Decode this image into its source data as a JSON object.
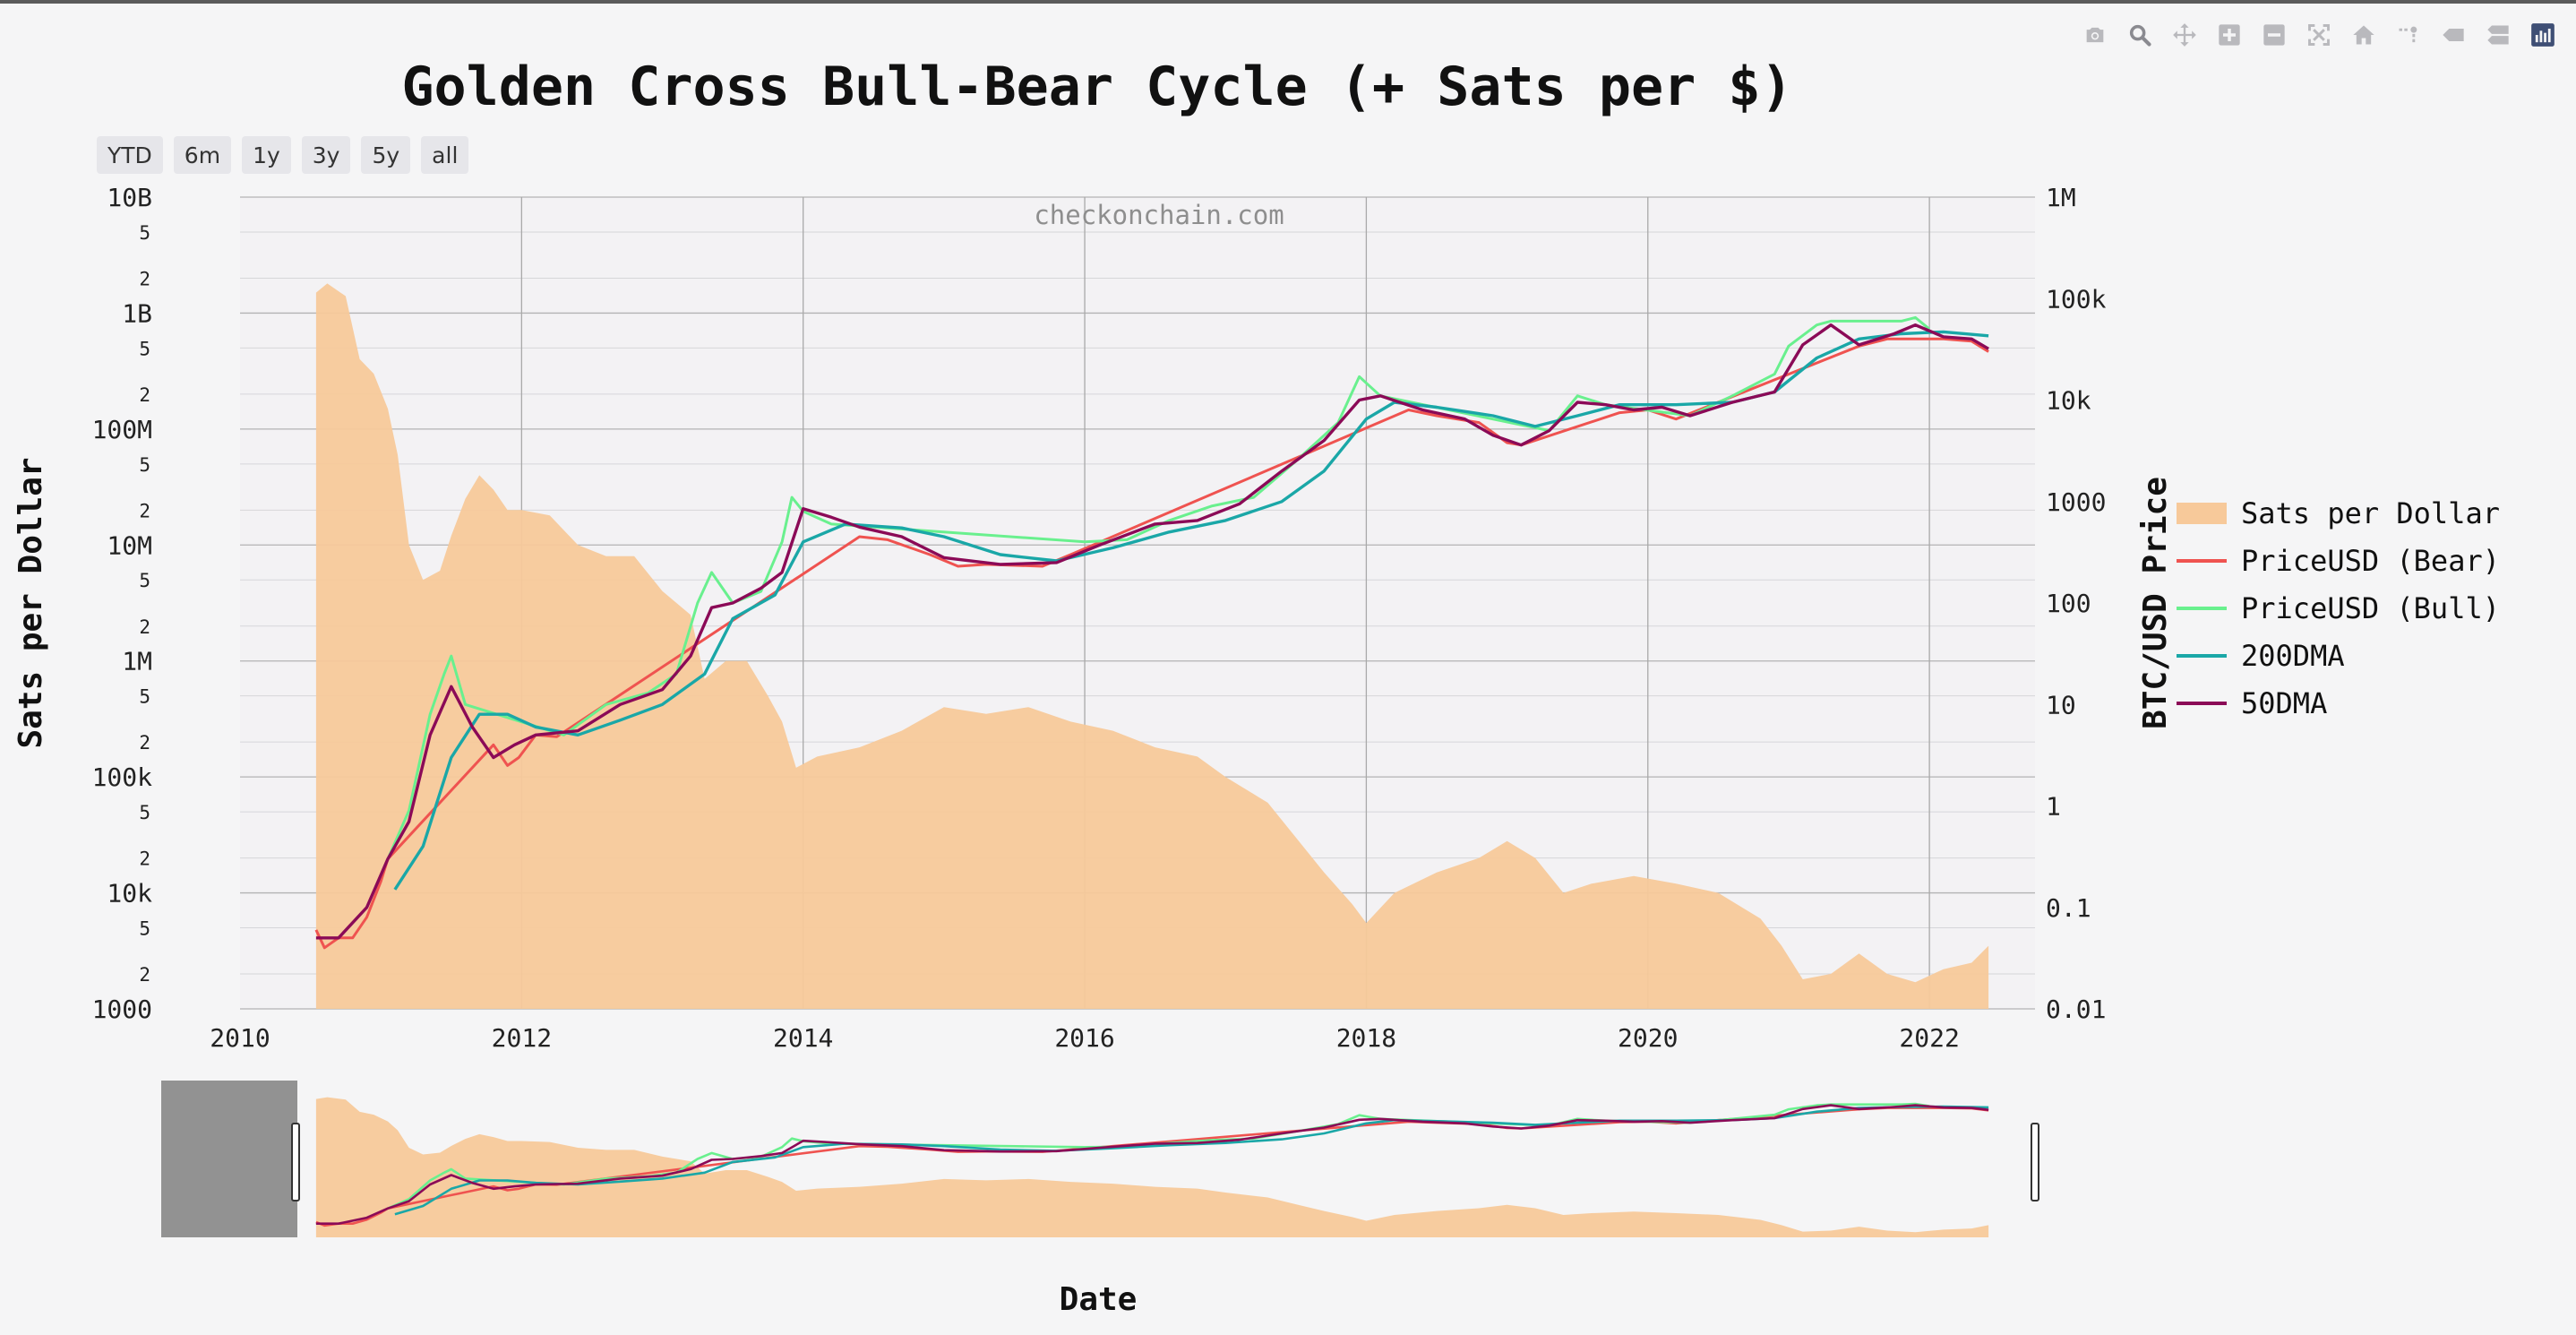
{
  "title": "Golden Cross Bull-Bear Cycle (+ Sats per $)",
  "watermark": "checkonchain.com",
  "range_buttons": [
    "YTD",
    "6m",
    "1y",
    "3y",
    "5y",
    "all"
  ],
  "modebar_icons": [
    "camera-icon",
    "zoom-icon",
    "pan-icon",
    "zoom-in-icon",
    "zoom-out-icon",
    "autoscale-icon",
    "reset-axes-icon",
    "spike-lines-icon",
    "hover-closest-icon",
    "hover-compare-icon",
    "plotly-logo-icon"
  ],
  "colors": {
    "sats": "#f7c99a",
    "bear": "#ef5350",
    "bull": "#69f08e",
    "dma200": "#1aa7a7",
    "dma50": "#8b0a57"
  },
  "chart_data": {
    "type": "line",
    "x_axis": {
      "title": "Date",
      "range": [
        2010,
        2022.75
      ],
      "ticks": [
        "2010",
        "2012",
        "2014",
        "2016",
        "2018",
        "2020",
        "2022"
      ]
    },
    "y_left": {
      "title": "Sats per Dollar",
      "scale": "log",
      "range": [
        1000,
        10000000000
      ],
      "ticks": [
        "1000",
        "10k",
        "100k",
        "1M",
        "10M",
        "100M",
        "1B",
        "10B"
      ],
      "minor_ticks": [
        "2",
        "5"
      ]
    },
    "y_right": {
      "title": "BTC/USD Price",
      "scale": "log",
      "range": [
        0.01,
        1000000
      ],
      "ticks": [
        "0.01",
        "0.1",
        "1",
        "10",
        "100",
        "1000",
        "10k",
        "100k",
        "1M"
      ]
    },
    "legend_position": "right",
    "legend": [
      "Sats per Dollar",
      "PriceUSD (Bear)",
      "PriceUSD (Bull)",
      "200DMA",
      "50DMA"
    ],
    "rangeslider": true,
    "series": [
      {
        "name": "Sats per Dollar",
        "axis": "left",
        "style": "area",
        "x": [
          2010.54,
          2010.62,
          2010.75,
          2010.85,
          2010.95,
          2011.05,
          2011.12,
          2011.2,
          2011.3,
          2011.42,
          2011.5,
          2011.6,
          2011.7,
          2011.8,
          2011.9,
          2012.0,
          2012.2,
          2012.4,
          2012.6,
          2012.8,
          2013.0,
          2013.2,
          2013.3,
          2013.45,
          2013.6,
          2013.75,
          2013.85,
          2013.95,
          2014.1,
          2014.4,
          2014.7,
          2015.0,
          2015.3,
          2015.6,
          2015.9,
          2016.2,
          2016.5,
          2016.8,
          2017.0,
          2017.3,
          2017.5,
          2017.7,
          2017.9,
          2018.0,
          2018.2,
          2018.5,
          2018.8,
          2019.0,
          2019.2,
          2019.4,
          2019.6,
          2019.9,
          2020.2,
          2020.5,
          2020.8,
          2020.95,
          2021.1,
          2021.3,
          2021.5,
          2021.7,
          2021.9,
          2022.1,
          2022.3,
          2022.42
        ],
        "values": [
          1500000000,
          1800000000,
          1400000000,
          400000000,
          300000000,
          150000000,
          60000000,
          10000000,
          5000000,
          6000000,
          12000000,
          25000000,
          40000000,
          30000000,
          20000000,
          20000000,
          18000000,
          10000000,
          8000000,
          8000000,
          4000000,
          2500000,
          700000,
          1000000,
          1000000,
          500000,
          300000,
          120000,
          150000,
          180000,
          250000,
          400000,
          350000,
          400000,
          300000,
          250000,
          180000,
          150000,
          100000,
          60000,
          30000,
          15000,
          8000,
          5500,
          10000,
          15000,
          20000,
          28000,
          20000,
          10000,
          12000,
          14000,
          12000,
          10000,
          6000,
          3500,
          1800,
          2000,
          3000,
          2000,
          1700,
          2200,
          2500,
          3500
        ]
      },
      {
        "name": "PriceUSD (Bear)",
        "axis": "right",
        "style": "line",
        "x": [
          2010.54,
          2010.6,
          2010.7,
          2010.8,
          2010.9,
          2011.0,
          2011.05,
          2011.8,
          2011.9,
          2011.98,
          2012.1,
          2012.25,
          2014.4,
          2014.6,
          2014.9,
          2015.1,
          2015.3,
          2015.7,
          2015.9,
          2018.3,
          2018.5,
          2018.8,
          2019.0,
          2019.1,
          2019.8,
          2020.0,
          2020.2,
          2021.5,
          2021.7,
          2022.1,
          2022.3,
          2022.42
        ],
        "values": [
          0.06,
          0.04,
          0.05,
          0.05,
          0.08,
          0.18,
          0.3,
          4,
          2.5,
          3,
          5,
          4.8,
          450,
          420,
          300,
          230,
          240,
          230,
          300,
          8000,
          7000,
          6000,
          3800,
          3600,
          7500,
          8000,
          6500,
          34000,
          40000,
          40000,
          38000,
          30000
        ]
      },
      {
        "name": "PriceUSD (Bull)",
        "axis": "right",
        "style": "line",
        "x": [
          2011.05,
          2011.2,
          2011.35,
          2011.45,
          2011.5,
          2011.6,
          2012.3,
          2012.6,
          2012.9,
          2013.1,
          2013.25,
          2013.35,
          2013.5,
          2013.7,
          2013.85,
          2013.92,
          2014.0,
          2014.2,
          2016.0,
          2016.3,
          2016.6,
          2016.9,
          2017.2,
          2017.5,
          2017.8,
          2017.95,
          2018.1,
          2019.3,
          2019.5,
          2019.7,
          2020.3,
          2020.6,
          2020.9,
          2021.0,
          2021.2,
          2021.3,
          2021.8,
          2021.9,
          2022.0
        ],
        "values": [
          0.3,
          0.9,
          8,
          20,
          30,
          10,
          5,
          10,
          13,
          20,
          100,
          200,
          100,
          130,
          400,
          1100,
          800,
          600,
          400,
          420,
          650,
          900,
          1100,
          2500,
          6000,
          17000,
          11000,
          5000,
          11000,
          9000,
          7000,
          11000,
          18000,
          34000,
          55000,
          60000,
          60000,
          65000,
          50000
        ]
      },
      {
        "name": "200DMA",
        "axis": "right",
        "style": "line",
        "x": [
          2011.1,
          2011.3,
          2011.5,
          2011.7,
          2011.9,
          2012.1,
          2012.4,
          2012.7,
          2013.0,
          2013.3,
          2013.5,
          2013.8,
          2014.0,
          2014.3,
          2014.7,
          2015.0,
          2015.4,
          2015.8,
          2016.2,
          2016.6,
          2017.0,
          2017.4,
          2017.7,
          2018.0,
          2018.2,
          2018.5,
          2018.9,
          2019.2,
          2019.5,
          2019.8,
          2020.2,
          2020.6,
          2020.9,
          2021.2,
          2021.5,
          2021.8,
          2022.1,
          2022.42
        ],
        "values": [
          0.15,
          0.4,
          3,
          8,
          8,
          6,
          5,
          7,
          10,
          20,
          70,
          120,
          400,
          600,
          550,
          450,
          300,
          260,
          350,
          500,
          650,
          1000,
          2000,
          6500,
          9500,
          8500,
          7000,
          5500,
          7000,
          9000,
          9000,
          9500,
          12000,
          26000,
          40000,
          45000,
          47000,
          43000
        ]
      },
      {
        "name": "50DMA",
        "axis": "right",
        "style": "line",
        "x": [
          2010.54,
          2010.7,
          2010.9,
          2011.05,
          2011.2,
          2011.35,
          2011.5,
          2011.65,
          2011.8,
          2011.95,
          2012.1,
          2012.4,
          2012.7,
          2013.0,
          2013.2,
          2013.35,
          2013.5,
          2013.7,
          2013.85,
          2014.0,
          2014.2,
          2014.4,
          2014.7,
          2015.0,
          2015.4,
          2015.8,
          2016.1,
          2016.5,
          2016.8,
          2017.1,
          2017.4,
          2017.7,
          2017.95,
          2018.1,
          2018.4,
          2018.7,
          2018.9,
          2019.1,
          2019.3,
          2019.5,
          2019.7,
          2019.9,
          2020.1,
          2020.3,
          2020.6,
          2020.9,
          2021.1,
          2021.3,
          2021.5,
          2021.75,
          2021.9,
          2022.1,
          2022.3,
          2022.42
        ],
        "values": [
          0.05,
          0.05,
          0.1,
          0.3,
          0.7,
          5,
          15,
          6,
          3,
          4,
          5,
          5.5,
          10,
          14,
          30,
          90,
          100,
          140,
          200,
          850,
          700,
          560,
          450,
          280,
          240,
          250,
          370,
          600,
          650,
          950,
          2000,
          4000,
          10000,
          11000,
          8000,
          6500,
          4500,
          3600,
          5000,
          9500,
          9000,
          8000,
          8500,
          7000,
          9500,
          12000,
          35000,
          55000,
          35000,
          45000,
          55000,
          42000,
          40000,
          32000
        ]
      }
    ]
  }
}
